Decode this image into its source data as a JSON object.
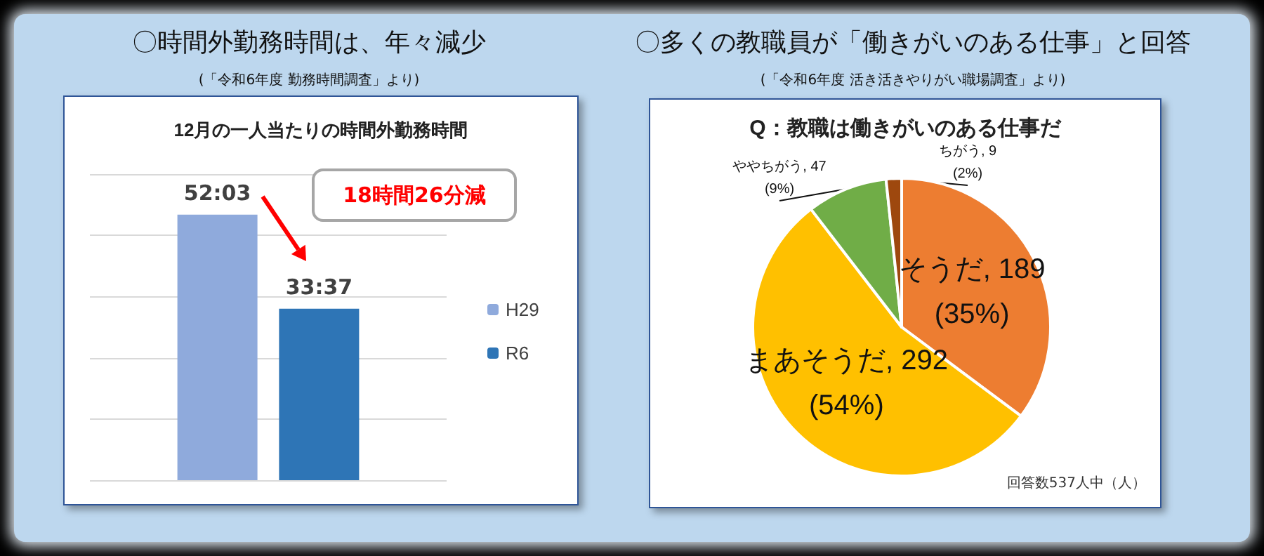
{
  "chart_data": [
    {
      "type": "bar",
      "title": "12月の一人当たりの時間外勤務時間",
      "categories": [
        null
      ],
      "series": [
        {
          "name": "H29",
          "color": "#8faadc",
          "values": [
            52.05
          ],
          "value_labels": [
            "52:03"
          ]
        },
        {
          "name": "R6",
          "color": "#2e75b6",
          "values": [
            33.62
          ],
          "value_labels": [
            "33:37"
          ]
        }
      ],
      "ylim": [
        0,
        60
      ],
      "yticks": [
        {
          "value": 0,
          "label": null
        },
        {
          "value": 12,
          "label": null
        },
        {
          "value": 24,
          "label": null
        },
        {
          "value": 36,
          "label": null
        },
        {
          "value": 48,
          "label": null
        },
        {
          "value": 60,
          "label": null
        }
      ],
      "grid": "y",
      "legend": "right",
      "tick_labels": false,
      "annotations": [
        "〇時間外勤務時間は、年々減少",
        "(「令和6年度 勤務時間調査」より)",
        "18時間26分減"
      ]
    },
    {
      "type": "pie",
      "title": "Q：教職は働きがいのある仕事だ",
      "categories": [
        "そうだ",
        "まあそうだ",
        "ややちがう",
        "ちがう"
      ],
      "values": [
        189,
        292,
        47,
        9
      ],
      "colors": [
        "#ed7d31",
        "#ffc000",
        "#70ad47",
        "#9e480e"
      ],
      "value_labels": [
        "189(35%)",
        "292(54%)",
        "47(9%)",
        "9(2%)"
      ],
      "annotations": [
        "〇多くの教職員が「働きがいのある仕事」と回答",
        "(「令和6年度 活き活きやりがい職場調査」より)",
        "回答数537人中（人）"
      ]
    }
  ]
}
